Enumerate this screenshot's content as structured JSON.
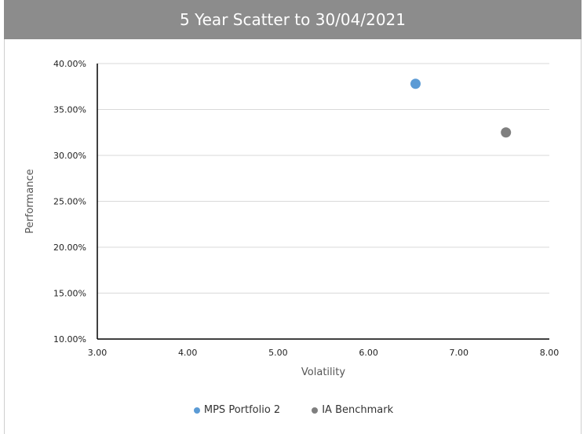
{
  "chart_data": {
    "type": "scatter",
    "title": "5 Year Scatter to 30/04/2021",
    "xlabel": "Volatility",
    "ylabel": "Performance",
    "xlim": [
      3.0,
      8.0
    ],
    "ylim": [
      0.1,
      0.4
    ],
    "x_ticks": [
      "3.00",
      "4.00",
      "5.00",
      "6.00",
      "7.00",
      "8.00"
    ],
    "y_ticks": [
      "10.00%",
      "15.00%",
      "20.00%",
      "25.00%",
      "30.00%",
      "35.00%",
      "40.00%"
    ],
    "grid": "horizontal",
    "legend_position": "bottom",
    "series": [
      {
        "name": "MPS Portfolio 2",
        "color": "#5b9bd5",
        "points": [
          {
            "x": 6.52,
            "y": 0.378
          }
        ]
      },
      {
        "name": "IA Benchmark",
        "color": "#7f7f7f",
        "points": [
          {
            "x": 7.52,
            "y": 0.325
          }
        ]
      }
    ]
  }
}
